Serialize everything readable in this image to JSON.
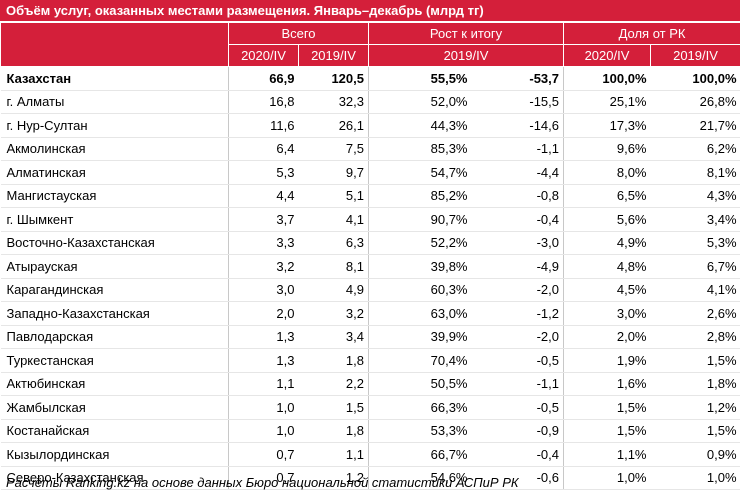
{
  "table": {
    "title": "Объём услуг, оказанных местами размещения. Январь–декабрь (млрд тг)",
    "header_groups": [
      "Всего",
      "Рост к итогу",
      "Доля от РК"
    ],
    "header_sub": [
      "2020/IV",
      "2019/IV",
      "2019/IV",
      "2020/IV",
      "2019/IV"
    ],
    "rows": [
      [
        "Казахстан",
        "66,9",
        "120,5",
        "55,5%",
        "-53,7",
        "100,0%",
        "100,0%"
      ],
      [
        "г. Алматы",
        "16,8",
        "32,3",
        "52,0%",
        "-15,5",
        "25,1%",
        "26,8%"
      ],
      [
        "г. Нур-Султан",
        "11,6",
        "26,1",
        "44,3%",
        "-14,6",
        "17,3%",
        "21,7%"
      ],
      [
        "Акмолинская",
        "6,4",
        "7,5",
        "85,3%",
        "-1,1",
        "9,6%",
        "6,2%"
      ],
      [
        "Алматинская",
        "5,3",
        "9,7",
        "54,7%",
        "-4,4",
        "8,0%",
        "8,1%"
      ],
      [
        "Мангистауская",
        "4,4",
        "5,1",
        "85,2%",
        "-0,8",
        "6,5%",
        "4,3%"
      ],
      [
        "г. Шымкент",
        "3,7",
        "4,1",
        "90,7%",
        "-0,4",
        "5,6%",
        "3,4%"
      ],
      [
        "Восточно-Казахстанская",
        "3,3",
        "6,3",
        "52,2%",
        "-3,0",
        "4,9%",
        "5,3%"
      ],
      [
        "Атырауская",
        "3,2",
        "8,1",
        "39,8%",
        "-4,9",
        "4,8%",
        "6,7%"
      ],
      [
        "Карагандинская",
        "3,0",
        "4,9",
        "60,3%",
        "-2,0",
        "4,5%",
        "4,1%"
      ],
      [
        "Западно-Казахстанская",
        "2,0",
        "3,2",
        "63,0%",
        "-1,2",
        "3,0%",
        "2,6%"
      ],
      [
        "Павлодарская",
        "1,3",
        "3,4",
        "39,9%",
        "-2,0",
        "2,0%",
        "2,8%"
      ],
      [
        "Туркестанская",
        "1,3",
        "1,8",
        "70,4%",
        "-0,5",
        "1,9%",
        "1,5%"
      ],
      [
        "Актюбинская",
        "1,1",
        "2,2",
        "50,5%",
        "-1,1",
        "1,6%",
        "1,8%"
      ],
      [
        "Жамбылская",
        "1,0",
        "1,5",
        "66,3%",
        "-0,5",
        "1,5%",
        "1,2%"
      ],
      [
        "Костанайская",
        "1,0",
        "1,8",
        "53,3%",
        "-0,9",
        "1,5%",
        "1,5%"
      ],
      [
        "Кызылординская",
        "0,7",
        "1,1",
        "66,7%",
        "-0,4",
        "1,1%",
        "0,9%"
      ],
      [
        "Северо-Казахстанская",
        "0,7",
        "1,2",
        "54,6%",
        "-0,6",
        "1,0%",
        "1,0%"
      ]
    ],
    "footnote": "Расчёты Ranking.kz на основе данных Бюро национальной статистики АСПиР РК"
  }
}
